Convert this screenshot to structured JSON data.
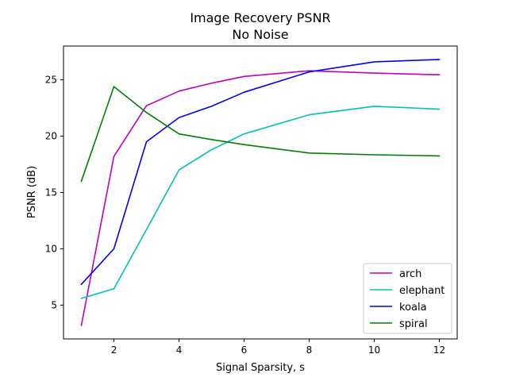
{
  "chart_data": {
    "type": "line",
    "title": "Image Recovery PSNR",
    "subtitle": "No Noise",
    "xlabel": "Signal Sparsity, s",
    "ylabel": "PSNR (dB)",
    "x": [
      1,
      2,
      3,
      4,
      5,
      6,
      8,
      10,
      12
    ],
    "xlim": [
      0.45,
      12.55
    ],
    "ylim": [
      2.0,
      28.0
    ],
    "xticks": [
      2,
      4,
      6,
      8,
      10,
      12
    ],
    "yticks": [
      5,
      10,
      15,
      20,
      25
    ],
    "grid": false,
    "legend_position": "lower-right",
    "series": [
      {
        "name": "arch",
        "color": "#bf00bf",
        "values": [
          3.2,
          18.2,
          22.7,
          24.0,
          24.7,
          25.3,
          25.8,
          25.6,
          25.45
        ]
      },
      {
        "name": "elephant",
        "color": "#00bfbf",
        "values": [
          5.6,
          6.45,
          11.7,
          17.0,
          18.8,
          20.2,
          21.9,
          22.65,
          22.4
        ]
      },
      {
        "name": "koala",
        "color": "#0000ff",
        "values": [
          6.85,
          10.0,
          19.5,
          21.65,
          22.65,
          23.9,
          25.7,
          26.6,
          26.8
        ]
      },
      {
        "name": "spiral",
        "color": "#008000",
        "values": [
          16.0,
          24.4,
          22.1,
          20.2,
          19.7,
          19.25,
          18.5,
          18.35,
          18.25
        ]
      }
    ]
  }
}
